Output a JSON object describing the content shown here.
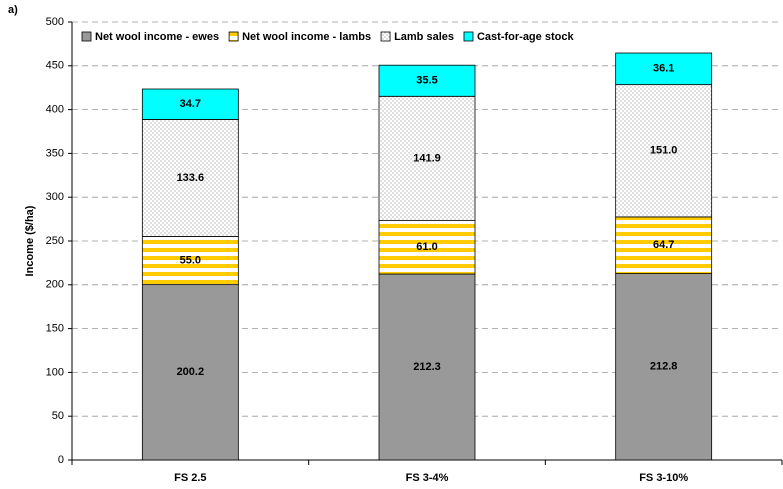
{
  "chart_data": {
    "type": "stacked_bar",
    "panel_label": "a)",
    "y_label": "Income ($/ha)",
    "categories": [
      "FS 2.5",
      "FS 3-4%",
      "FS 3-10%"
    ],
    "series": [
      {
        "name": "Net wool income - ewes",
        "color": "#999999",
        "fill_pattern": "solid",
        "values": [
          200.2,
          212.3,
          212.8
        ],
        "value_labels": [
          "200.2",
          "212.3",
          "212.8"
        ]
      },
      {
        "name": "Net wool income - lambs",
        "color": "#ffcc00",
        "fill_pattern": "stripes",
        "values": [
          55.0,
          61.0,
          64.7
        ],
        "value_labels": [
          "55.0",
          "61.0",
          "64.7"
        ]
      },
      {
        "name": "Lamb sales",
        "color": "#b0b0b0",
        "fill_pattern": "dots",
        "values": [
          133.6,
          141.9,
          151.0
        ],
        "value_labels": [
          "133.6",
          "141.9",
          "151.0"
        ]
      },
      {
        "name": "Cast-for-age stock",
        "color": "#00ffff",
        "fill_pattern": "solid",
        "values": [
          34.7,
          35.5,
          36.1
        ],
        "value_labels": [
          "34.7",
          "35.5",
          "36.1"
        ]
      }
    ],
    "ylim": [
      0,
      500
    ],
    "yticks": [
      0,
      50,
      100,
      150,
      200,
      250,
      300,
      350,
      400,
      450,
      500
    ],
    "grid": true,
    "legend": "top"
  }
}
